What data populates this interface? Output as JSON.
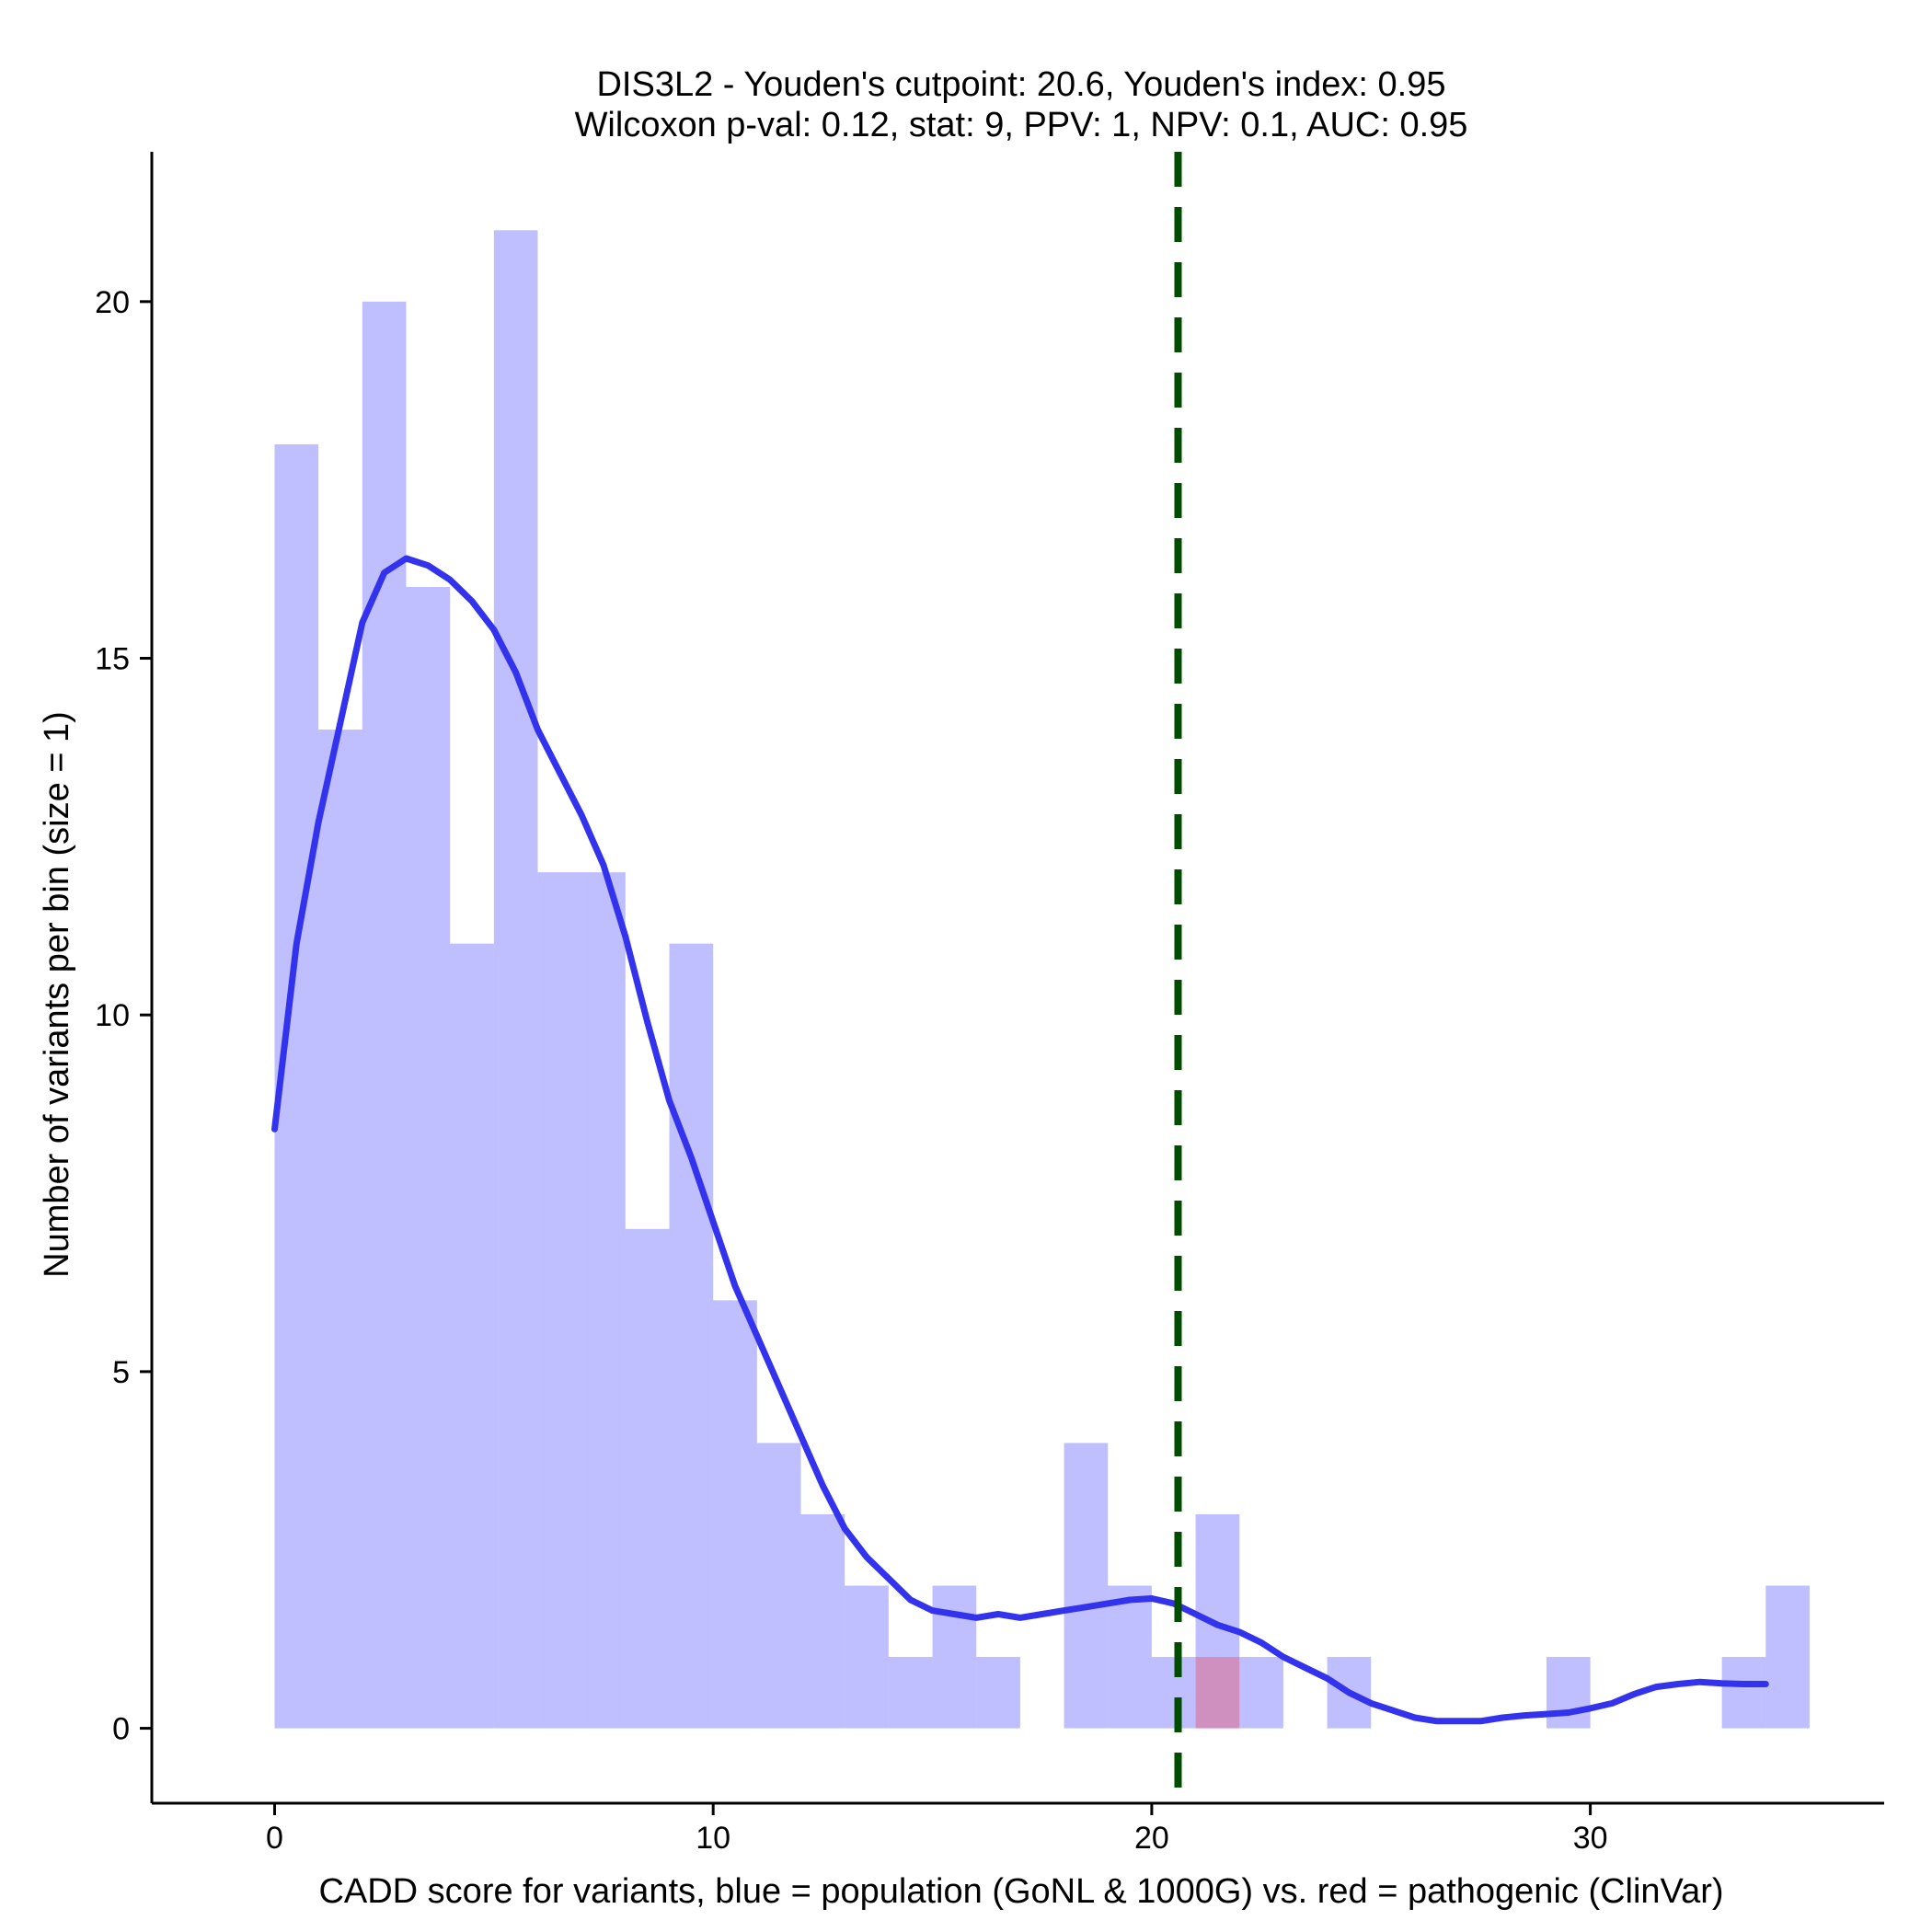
{
  "chart_data": {
    "type": "bar",
    "title": "DIS3L2 - Youden's cutpoint: 20.6, Youden's index: 0.95",
    "subtitle": "Wilcoxon p-val: 0.12, stat: 9, PPV: 1, NPV: 0.1, AUC: 0.95",
    "xlabel": "CADD score for variants, blue = population (GoNL & 1000G) vs. red = pathogenic (ClinVar)",
    "ylabel": "Number of variants per bin (size = 1)",
    "xlim": [
      -2.8,
      36.7
    ],
    "ylim": [
      -1.05,
      22.1
    ],
    "xticks": [
      0,
      10,
      20,
      30
    ],
    "yticks": [
      0,
      5,
      10,
      15,
      20
    ],
    "bin_width": 1,
    "grid": false,
    "cutpoint": 20.6,
    "colors": {
      "population": "#0000ff",
      "pathogenic": "#ff0000",
      "density": "#3333ee",
      "cutpoint": "#004d00"
    },
    "series": [
      {
        "values": [
          {
            "x0": 0,
            "count": 18
          },
          {
            "x0": 1,
            "count": 14
          },
          {
            "x0": 2,
            "count": 20
          },
          {
            "x0": 3,
            "count": 16
          },
          {
            "x0": 4,
            "count": 11
          },
          {
            "x0": 5,
            "count": 21
          },
          {
            "x0": 6,
            "count": 12
          },
          {
            "x0": 7,
            "count": 12
          },
          {
            "x0": 8,
            "count": 7
          },
          {
            "x0": 9,
            "count": 11
          },
          {
            "x0": 10,
            "count": 6
          },
          {
            "x0": 11,
            "count": 4
          },
          {
            "x0": 12,
            "count": 3
          },
          {
            "x0": 13,
            "count": 2
          },
          {
            "x0": 14,
            "count": 1
          },
          {
            "x0": 15,
            "count": 2
          },
          {
            "x0": 16,
            "count": 1
          },
          {
            "x0": 18,
            "count": 4
          },
          {
            "x0": 19,
            "count": 2
          },
          {
            "x0": 20,
            "count": 1
          },
          {
            "x0": 21,
            "count": 3
          },
          {
            "x0": 22,
            "count": 1
          },
          {
            "x0": 24,
            "count": 1
          },
          {
            "x0": 29,
            "count": 1
          },
          {
            "x0": 33,
            "count": 1
          },
          {
            "x0": 34,
            "count": 2
          }
        ]
      },
      {
        "values": [
          {
            "x0": 21,
            "count": 1
          }
        ]
      }
    ],
    "density_curve": [
      [
        0,
        8.4
      ],
      [
        0.5,
        11.0
      ],
      [
        1,
        12.7
      ],
      [
        1.5,
        14.1
      ],
      [
        2,
        15.5
      ],
      [
        2.5,
        16.2
      ],
      [
        3,
        16.4
      ],
      [
        3.5,
        16.3
      ],
      [
        4,
        16.1
      ],
      [
        4.5,
        15.8
      ],
      [
        5,
        15.4
      ],
      [
        5.5,
        14.8
      ],
      [
        6,
        14.0
      ],
      [
        6.5,
        13.4
      ],
      [
        7,
        12.8
      ],
      [
        7.5,
        12.1
      ],
      [
        8,
        11.1
      ],
      [
        8.5,
        9.9
      ],
      [
        9,
        8.8
      ],
      [
        9.5,
        8.0
      ],
      [
        10,
        7.1
      ],
      [
        10.5,
        6.2
      ],
      [
        11,
        5.5
      ],
      [
        11.5,
        4.8
      ],
      [
        12,
        4.1
      ],
      [
        12.5,
        3.4
      ],
      [
        13,
        2.8
      ],
      [
        13.5,
        2.4
      ],
      [
        14,
        2.1
      ],
      [
        14.5,
        1.8
      ],
      [
        15,
        1.65
      ],
      [
        15.5,
        1.6
      ],
      [
        16,
        1.55
      ],
      [
        16.5,
        1.6
      ],
      [
        17,
        1.55
      ],
      [
        17.5,
        1.6
      ],
      [
        18,
        1.65
      ],
      [
        18.5,
        1.7
      ],
      [
        19,
        1.75
      ],
      [
        19.5,
        1.8
      ],
      [
        20,
        1.82
      ],
      [
        20.5,
        1.75
      ],
      [
        21,
        1.6
      ],
      [
        21.5,
        1.45
      ],
      [
        22,
        1.35
      ],
      [
        22.5,
        1.2
      ],
      [
        23,
        1.0
      ],
      [
        23.5,
        0.85
      ],
      [
        24,
        0.7
      ],
      [
        24.5,
        0.5
      ],
      [
        25,
        0.35
      ],
      [
        25.5,
        0.25
      ],
      [
        26,
        0.15
      ],
      [
        26.5,
        0.1
      ],
      [
        27,
        0.1
      ],
      [
        27.5,
        0.1
      ],
      [
        28,
        0.15
      ],
      [
        28.5,
        0.18
      ],
      [
        29,
        0.2
      ],
      [
        29.5,
        0.22
      ],
      [
        30,
        0.28
      ],
      [
        30.5,
        0.35
      ],
      [
        31,
        0.48
      ],
      [
        31.5,
        0.58
      ],
      [
        32,
        0.62
      ],
      [
        32.5,
        0.65
      ],
      [
        33,
        0.63
      ],
      [
        33.5,
        0.62
      ],
      [
        34,
        0.62
      ]
    ]
  }
}
